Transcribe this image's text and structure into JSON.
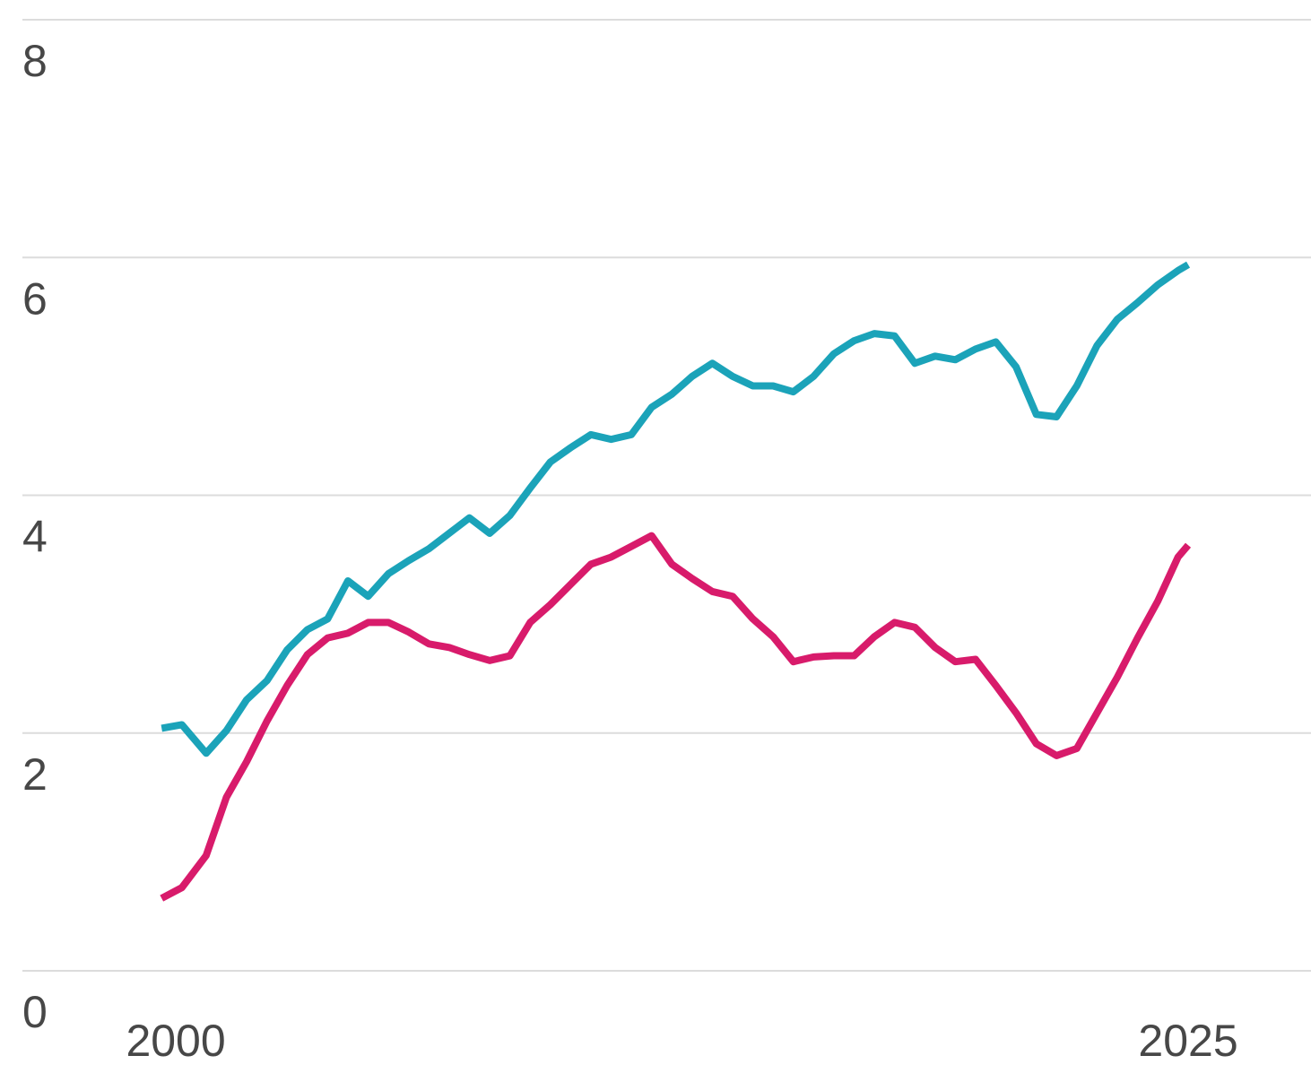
{
  "chart_data": {
    "type": "line",
    "x": [
      1999.65,
      2000.15,
      2000.75,
      2001.25,
      2001.75,
      2002.25,
      2002.75,
      2003.25,
      2003.75,
      2004.25,
      2004.75,
      2005.25,
      2005.75,
      2006.25,
      2006.75,
      2007.25,
      2007.75,
      2008.25,
      2008.75,
      2009.25,
      2009.75,
      2010.25,
      2010.75,
      2011.25,
      2011.75,
      2012.25,
      2012.75,
      2013.25,
      2013.75,
      2014.25,
      2014.75,
      2015.25,
      2015.75,
      2016.25,
      2016.75,
      2017.25,
      2017.75,
      2018.25,
      2018.75,
      2019.25,
      2019.75,
      2020.25,
      2020.75,
      2021.25,
      2021.75,
      2022.25,
      2022.75,
      2023.25,
      2023.75,
      2024.25,
      2024.75,
      2025
    ],
    "series": [
      {
        "color": "#1ba3b9",
        "values": [
          2.04,
          2.07,
          1.83,
          2.02,
          2.28,
          2.44,
          2.7,
          2.87,
          2.96,
          3.28,
          3.15,
          3.34,
          3.45,
          3.55,
          3.68,
          3.81,
          3.68,
          3.83,
          4.06,
          4.28,
          4.4,
          4.51,
          4.47,
          4.51,
          4.74,
          4.85,
          5.0,
          5.11,
          5.0,
          4.92,
          4.92,
          4.87,
          5.0,
          5.19,
          5.3,
          5.36,
          5.34,
          5.11,
          5.17,
          5.14,
          5.23,
          5.29,
          5.08,
          4.68,
          4.66,
          4.92,
          5.26,
          5.48,
          5.62,
          5.77,
          5.89,
          5.94
        ]
      },
      {
        "color": "#d81b6b",
        "values": [
          0.61,
          0.7,
          0.97,
          1.46,
          1.76,
          2.1,
          2.4,
          2.66,
          2.8,
          2.84,
          2.93,
          2.93,
          2.85,
          2.75,
          2.72,
          2.66,
          2.61,
          2.65,
          2.93,
          3.08,
          3.25,
          3.42,
          3.48,
          3.57,
          3.66,
          3.42,
          3.3,
          3.19,
          3.15,
          2.96,
          2.81,
          2.6,
          2.64,
          2.65,
          2.65,
          2.81,
          2.93,
          2.89,
          2.72,
          2.6,
          2.62,
          2.4,
          2.17,
          1.91,
          1.81,
          1.87,
          2.17,
          2.47,
          2.8,
          3.11,
          3.48,
          3.58
        ]
      }
    ],
    "xlim": [
      1996.5,
      2028
    ],
    "xticks": [
      2000,
      2025
    ],
    "ylim": [
      0,
      8
    ],
    "yticks": [
      0,
      2,
      4,
      6,
      8
    ],
    "grid": true
  }
}
